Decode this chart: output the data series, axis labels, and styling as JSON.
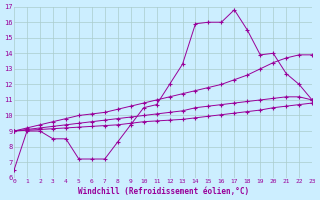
{
  "xlabel": "Windchill (Refroidissement éolien,°C)",
  "background_color": "#cceeff",
  "grid_color": "#aacccc",
  "line_color": "#990099",
  "x_data": [
    0,
    1,
    2,
    3,
    4,
    5,
    6,
    7,
    8,
    9,
    10,
    11,
    12,
    13,
    14,
    15,
    16,
    17,
    18,
    19,
    20,
    21,
    22,
    23
  ],
  "series1": [
    6.5,
    9.0,
    9.0,
    8.5,
    8.5,
    7.2,
    7.2,
    7.2,
    8.3,
    9.4,
    10.5,
    10.7,
    12.0,
    13.3,
    15.9,
    16.0,
    16.0,
    16.8,
    15.5,
    13.9,
    14.0,
    12.7,
    12.0,
    11.0
  ],
  "series2": [
    9.0,
    9.2,
    9.4,
    9.6,
    9.8,
    10.0,
    10.1,
    10.2,
    10.4,
    10.6,
    10.8,
    11.0,
    11.2,
    11.4,
    11.6,
    11.8,
    12.0,
    12.3,
    12.6,
    13.0,
    13.4,
    13.7,
    13.9,
    13.9
  ],
  "series3": [
    9.0,
    9.1,
    9.2,
    9.3,
    9.4,
    9.5,
    9.6,
    9.7,
    9.8,
    9.9,
    10.0,
    10.1,
    10.2,
    10.3,
    10.5,
    10.6,
    10.7,
    10.8,
    10.9,
    11.0,
    11.1,
    11.2,
    11.2,
    11.0
  ],
  "series4": [
    9.0,
    9.05,
    9.1,
    9.15,
    9.2,
    9.25,
    9.3,
    9.35,
    9.4,
    9.5,
    9.6,
    9.65,
    9.7,
    9.75,
    9.85,
    9.95,
    10.05,
    10.15,
    10.25,
    10.35,
    10.5,
    10.6,
    10.7,
    10.8
  ],
  "ylim": [
    6,
    17
  ],
  "xlim": [
    0,
    23
  ],
  "yticks": [
    6,
    7,
    8,
    9,
    10,
    11,
    12,
    13,
    14,
    15,
    16,
    17
  ],
  "xticks": [
    0,
    1,
    2,
    3,
    4,
    5,
    6,
    7,
    8,
    9,
    10,
    11,
    12,
    13,
    14,
    15,
    16,
    17,
    18,
    19,
    20,
    21,
    22,
    23
  ]
}
